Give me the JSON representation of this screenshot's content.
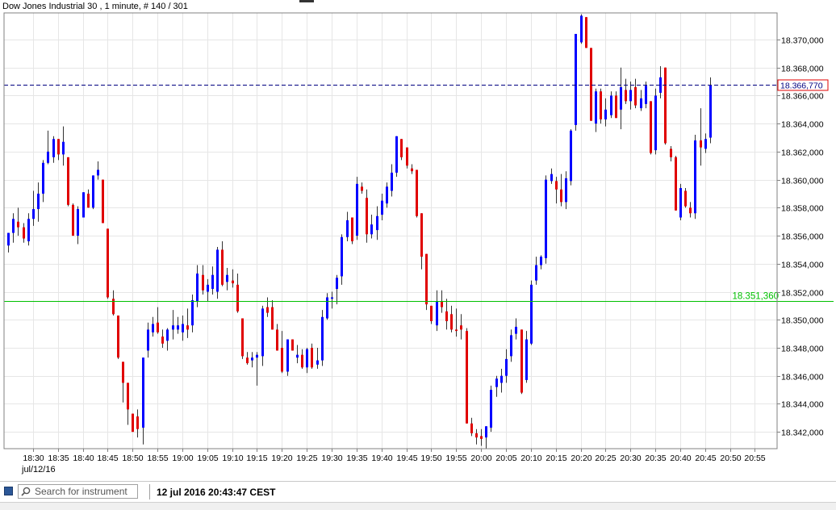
{
  "window": {
    "title": "Dow Jones Industrial 30 , 1 minute, # 140 / 301"
  },
  "chart_data": {
    "type": "candlestick",
    "title": "Dow Jones Industrial 30 , 1 minute, # 140 / 301",
    "date_label": "jul/12/16",
    "x_ticks": [
      "18:30",
      "18:35",
      "18:40",
      "18:45",
      "18:50",
      "18:55",
      "19:00",
      "19:05",
      "19:10",
      "19:15",
      "19:20",
      "19:25",
      "19:30",
      "19:35",
      "19:40",
      "19:45",
      "19:50",
      "19:55",
      "20:00",
      "20:05",
      "20:10",
      "20:15",
      "20:20",
      "20:25",
      "20:30",
      "20:35",
      "20:40",
      "20:45",
      "20:50",
      "20:55"
    ],
    "y_ticks": [
      "18.342,000",
      "18.344,000",
      "18.346,000",
      "18.348,000",
      "18.350,000",
      "18.352,000",
      "18.354,000",
      "18.356,000",
      "18.358,000",
      "18.360,000",
      "18.362,000",
      "18.364,000",
      "18.366,000",
      "18.368,000",
      "18.370,000"
    ],
    "y_tick_values": [
      18342,
      18344,
      18346,
      18348,
      18350,
      18352,
      18354,
      18356,
      18358,
      18360,
      18362,
      18364,
      18366,
      18368,
      18370
    ],
    "y_range": [
      18340.8,
      18371.9
    ],
    "x_range": [
      "18:25",
      "20:58"
    ],
    "grid": true,
    "colors": {
      "up": "#0000ff",
      "down": "#e00000",
      "current_line": "#000080",
      "level_line": "#00c000"
    },
    "current_price": {
      "value": 18366.77,
      "label": "18.366,770"
    },
    "level_line": {
      "value": 18351.36,
      "label": "18.351,360"
    },
    "candles": [
      {
        "t": "18:25",
        "o": 18355.3,
        "h": 18356.2,
        "l": 18354.8,
        "c": 18356.2
      },
      {
        "t": "18:26",
        "o": 18356.2,
        "h": 18357.6,
        "l": 18355.5,
        "c": 18357.2
      },
      {
        "t": "18:27",
        "o": 18357.0,
        "h": 18358.0,
        "l": 18356.0,
        "c": 18356.6
      },
      {
        "t": "18:28",
        "o": 18356.6,
        "h": 18356.9,
        "l": 18355.5,
        "c": 18355.8
      },
      {
        "t": "18:29",
        "o": 18355.6,
        "h": 18357.6,
        "l": 18355.3,
        "c": 18357.2
      },
      {
        "t": "18:30",
        "o": 18357.2,
        "h": 18359.2,
        "l": 18356.7,
        "c": 18357.9
      },
      {
        "t": "18:31",
        "o": 18357.9,
        "h": 18359.8,
        "l": 18357.0,
        "c": 18359.0
      },
      {
        "t": "18:32",
        "o": 18359.0,
        "h": 18361.4,
        "l": 18358.4,
        "c": 18361.2
      },
      {
        "t": "18:33",
        "o": 18361.2,
        "h": 18363.5,
        "l": 18361.1,
        "c": 18362.0
      },
      {
        "t": "18:34",
        "o": 18361.6,
        "h": 18363.1,
        "l": 18361.2,
        "c": 18362.9
      },
      {
        "t": "18:35",
        "o": 18362.9,
        "h": 18362.9,
        "l": 18361.4,
        "c": 18361.8
      },
      {
        "t": "18:36",
        "o": 18361.8,
        "h": 18363.8,
        "l": 18361.0,
        "c": 18362.7
      },
      {
        "t": "18:37",
        "o": 18361.6,
        "h": 18361.6,
        "l": 18358.1,
        "c": 18358.2
      },
      {
        "t": "18:38",
        "o": 18358.2,
        "h": 18358.3,
        "l": 18356.0,
        "c": 18356.0
      },
      {
        "t": "18:39",
        "o": 18356.0,
        "h": 18358.1,
        "l": 18355.4,
        "c": 18357.9
      },
      {
        "t": "18:40",
        "o": 18357.3,
        "h": 18359.1,
        "l": 18357.3,
        "c": 18359.1
      },
      {
        "t": "18:41",
        "o": 18359.0,
        "h": 18359.3,
        "l": 18358.0,
        "c": 18358.0
      },
      {
        "t": "18:42",
        "o": 18358.0,
        "h": 18360.3,
        "l": 18357.9,
        "c": 18360.3
      },
      {
        "t": "18:43",
        "o": 18360.3,
        "h": 18361.3,
        "l": 18360.0,
        "c": 18360.7
      },
      {
        "t": "18:44",
        "o": 18360.0,
        "h": 18360.0,
        "l": 18356.9,
        "c": 18356.9
      },
      {
        "t": "18:45",
        "o": 18356.5,
        "h": 18356.5,
        "l": 18351.5,
        "c": 18351.6
      },
      {
        "t": "18:46",
        "o": 18351.5,
        "h": 18352.1,
        "l": 18350.3,
        "c": 18350.4
      },
      {
        "t": "18:47",
        "o": 18350.3,
        "h": 18350.3,
        "l": 18347.2,
        "c": 18347.3
      },
      {
        "t": "18:48",
        "o": 18347.0,
        "h": 18347.0,
        "l": 18344.1,
        "c": 18345.5
      },
      {
        "t": "18:49",
        "o": 18345.5,
        "h": 18345.5,
        "l": 18342.5,
        "c": 18343.6
      },
      {
        "t": "18:50",
        "o": 18343.3,
        "h": 18343.3,
        "l": 18342.0,
        "c": 18342.0
      },
      {
        "t": "18:51",
        "o": 18343.1,
        "h": 18343.6,
        "l": 18341.6,
        "c": 18342.2
      },
      {
        "t": "18:52",
        "o": 18342.3,
        "h": 18347.3,
        "l": 18341.1,
        "c": 18347.3
      },
      {
        "t": "18:53",
        "o": 18347.8,
        "h": 18349.8,
        "l": 18347.3,
        "c": 18349.3
      },
      {
        "t": "18:54",
        "o": 18349.1,
        "h": 18350.2,
        "l": 18348.8,
        "c": 18349.7
      },
      {
        "t": "18:55",
        "o": 18349.8,
        "h": 18350.9,
        "l": 18349.0,
        "c": 18349.1
      },
      {
        "t": "18:56",
        "o": 18348.8,
        "h": 18349.3,
        "l": 18348.0,
        "c": 18348.3
      },
      {
        "t": "18:57",
        "o": 18348.5,
        "h": 18349.4,
        "l": 18347.8,
        "c": 18349.3
      },
      {
        "t": "18:58",
        "o": 18349.3,
        "h": 18350.7,
        "l": 18348.6,
        "c": 18349.6
      },
      {
        "t": "18:59",
        "o": 18349.3,
        "h": 18350.2,
        "l": 18349.0,
        "c": 18349.6
      },
      {
        "t": "19:00",
        "o": 18349.1,
        "h": 18350.3,
        "l": 18348.5,
        "c": 18349.7
      },
      {
        "t": "19:01",
        "o": 18349.6,
        "h": 18350.8,
        "l": 18348.7,
        "c": 18349.3
      },
      {
        "t": "19:02",
        "o": 18349.6,
        "h": 18351.8,
        "l": 18349.1,
        "c": 18351.4
      },
      {
        "t": "19:03",
        "o": 18351.3,
        "h": 18353.9,
        "l": 18350.9,
        "c": 18353.3
      },
      {
        "t": "19:04",
        "o": 18353.2,
        "h": 18353.9,
        "l": 18351.8,
        "c": 18352.1
      },
      {
        "t": "19:05",
        "o": 18352.0,
        "h": 18352.9,
        "l": 18351.3,
        "c": 18352.5
      },
      {
        "t": "19:06",
        "o": 18352.2,
        "h": 18353.8,
        "l": 18351.8,
        "c": 18353.2
      },
      {
        "t": "19:07",
        "o": 18352.0,
        "h": 18355.2,
        "l": 18351.5,
        "c": 18355.0
      },
      {
        "t": "19:08",
        "o": 18355.0,
        "h": 18355.6,
        "l": 18352.4,
        "c": 18352.5
      },
      {
        "t": "19:09",
        "o": 18352.7,
        "h": 18353.7,
        "l": 18352.1,
        "c": 18353.2
      },
      {
        "t": "19:10",
        "o": 18352.8,
        "h": 18353.6,
        "l": 18352.3,
        "c": 18352.6
      },
      {
        "t": "19:11",
        "o": 18352.5,
        "h": 18353.3,
        "l": 18350.5,
        "c": 18350.6
      },
      {
        "t": "19:12",
        "o": 18350.1,
        "h": 18350.1,
        "l": 18347.2,
        "c": 18347.4
      },
      {
        "t": "19:13",
        "o": 18347.3,
        "h": 18347.7,
        "l": 18346.8,
        "c": 18346.9
      },
      {
        "t": "19:14",
        "o": 18347.1,
        "h": 18347.7,
        "l": 18346.6,
        "c": 18347.3
      },
      {
        "t": "19:15",
        "o": 18347.3,
        "h": 18347.7,
        "l": 18345.3,
        "c": 18347.5
      },
      {
        "t": "19:16",
        "o": 18347.4,
        "h": 18351.0,
        "l": 18346.7,
        "c": 18350.8
      },
      {
        "t": "19:17",
        "o": 18350.9,
        "h": 18351.6,
        "l": 18350.2,
        "c": 18350.5
      },
      {
        "t": "19:18",
        "o": 18350.9,
        "h": 18351.4,
        "l": 18349.3,
        "c": 18349.3
      },
      {
        "t": "19:19",
        "o": 18349.3,
        "h": 18349.7,
        "l": 18347.8,
        "c": 18347.8
      },
      {
        "t": "19:20",
        "o": 18348.0,
        "h": 18349.2,
        "l": 18346.2,
        "c": 18346.3
      },
      {
        "t": "19:21",
        "o": 18346.3,
        "h": 18348.6,
        "l": 18346.0,
        "c": 18348.6
      },
      {
        "t": "19:22",
        "o": 18348.6,
        "h": 18348.6,
        "l": 18347.8,
        "c": 18347.8
      },
      {
        "t": "19:23",
        "o": 18347.3,
        "h": 18348.2,
        "l": 18346.9,
        "c": 18347.5
      },
      {
        "t": "19:24",
        "o": 18347.5,
        "h": 18347.9,
        "l": 18346.5,
        "c": 18346.6
      },
      {
        "t": "19:25",
        "o": 18346.6,
        "h": 18348.0,
        "l": 18346.2,
        "c": 18347.9
      },
      {
        "t": "19:26",
        "o": 18348.0,
        "h": 18348.3,
        "l": 18346.5,
        "c": 18346.6
      },
      {
        "t": "19:27",
        "o": 18346.8,
        "h": 18348.0,
        "l": 18346.5,
        "c": 18347.1
      },
      {
        "t": "19:28",
        "o": 18347.1,
        "h": 18350.7,
        "l": 18346.7,
        "c": 18350.2
      },
      {
        "t": "19:29",
        "o": 18350.1,
        "h": 18351.9,
        "l": 18350.0,
        "c": 18351.6
      },
      {
        "t": "19:30",
        "o": 18351.5,
        "h": 18352.0,
        "l": 18350.8,
        "c": 18351.6
      },
      {
        "t": "19:31",
        "o": 18352.2,
        "h": 18353.2,
        "l": 18351.1,
        "c": 18353.0
      },
      {
        "t": "19:32",
        "o": 18353.1,
        "h": 18356.1,
        "l": 18352.5,
        "c": 18355.9
      },
      {
        "t": "19:33",
        "o": 18355.9,
        "h": 18357.7,
        "l": 18355.6,
        "c": 18357.1
      },
      {
        "t": "19:34",
        "o": 18357.3,
        "h": 18357.3,
        "l": 18355.4,
        "c": 18355.6
      },
      {
        "t": "19:35",
        "o": 18356.0,
        "h": 18360.2,
        "l": 18355.7,
        "c": 18359.7
      },
      {
        "t": "19:36",
        "o": 18359.5,
        "h": 18359.8,
        "l": 18359.0,
        "c": 18359.2
      },
      {
        "t": "19:37",
        "o": 18358.7,
        "h": 18359.3,
        "l": 18355.5,
        "c": 18356.1
      },
      {
        "t": "19:38",
        "o": 18356.1,
        "h": 18357.5,
        "l": 18355.8,
        "c": 18356.8
      },
      {
        "t": "19:39",
        "o": 18356.4,
        "h": 18358.1,
        "l": 18355.7,
        "c": 18357.4
      },
      {
        "t": "19:40",
        "o": 18357.5,
        "h": 18359.0,
        "l": 18357.1,
        "c": 18358.5
      },
      {
        "t": "19:41",
        "o": 18358.3,
        "h": 18359.8,
        "l": 18358.0,
        "c": 18359.5
      },
      {
        "t": "19:42",
        "o": 18359.2,
        "h": 18361.1,
        "l": 18358.8,
        "c": 18360.5
      },
      {
        "t": "19:43",
        "o": 18360.5,
        "h": 18363.1,
        "l": 18360.2,
        "c": 18363.1
      },
      {
        "t": "19:44",
        "o": 18362.9,
        "h": 18362.9,
        "l": 18361.4,
        "c": 18361.6
      },
      {
        "t": "19:45",
        "o": 18362.3,
        "h": 18362.3,
        "l": 18360.8,
        "c": 18361.0
      },
      {
        "t": "19:46",
        "o": 18360.8,
        "h": 18361.1,
        "l": 18360.4,
        "c": 18360.6
      },
      {
        "t": "19:47",
        "o": 18360.7,
        "h": 18360.7,
        "l": 18357.3,
        "c": 18357.4
      },
      {
        "t": "19:48",
        "o": 18357.6,
        "h": 18357.6,
        "l": 18353.6,
        "c": 18354.5
      },
      {
        "t": "19:49",
        "o": 18354.7,
        "h": 18354.7,
        "l": 18350.7,
        "c": 18351.1
      },
      {
        "t": "19:50",
        "o": 18351.0,
        "h": 18351.0,
        "l": 18349.7,
        "c": 18349.9
      },
      {
        "t": "19:51",
        "o": 18349.6,
        "h": 18352.1,
        "l": 18349.2,
        "c": 18351.3
      },
      {
        "t": "19:52",
        "o": 18351.3,
        "h": 18352.1,
        "l": 18350.5,
        "c": 18350.9
      },
      {
        "t": "19:53",
        "o": 18350.6,
        "h": 18351.5,
        "l": 18349.3,
        "c": 18349.9
      },
      {
        "t": "19:54",
        "o": 18350.4,
        "h": 18351.0,
        "l": 18349.1,
        "c": 18349.3
      },
      {
        "t": "19:55",
        "o": 18349.3,
        "h": 18350.8,
        "l": 18348.8,
        "c": 18349.2
      },
      {
        "t": "19:56",
        "o": 18349.6,
        "h": 18350.4,
        "l": 18348.6,
        "c": 18349.3
      },
      {
        "t": "19:57",
        "o": 18349.2,
        "h": 18349.4,
        "l": 18342.6,
        "c": 18342.6
      },
      {
        "t": "19:58",
        "o": 18342.6,
        "h": 18343.0,
        "l": 18341.7,
        "c": 18341.9
      },
      {
        "t": "19:59",
        "o": 18341.9,
        "h": 18342.2,
        "l": 18341.1,
        "c": 18341.6
      },
      {
        "t": "20:00",
        "o": 18341.7,
        "h": 18342.2,
        "l": 18341.0,
        "c": 18341.5
      },
      {
        "t": "20:01",
        "o": 18341.6,
        "h": 18342.4,
        "l": 18340.8,
        "c": 18342.4
      },
      {
        "t": "20:02",
        "o": 18342.3,
        "h": 18345.3,
        "l": 18342.0,
        "c": 18345.0
      },
      {
        "t": "20:03",
        "o": 18345.2,
        "h": 18346.0,
        "l": 18344.5,
        "c": 18345.8
      },
      {
        "t": "20:04",
        "o": 18345.5,
        "h": 18346.5,
        "l": 18344.8,
        "c": 18346.0
      },
      {
        "t": "20:05",
        "o": 18346.0,
        "h": 18347.9,
        "l": 18345.5,
        "c": 18347.2
      },
      {
        "t": "20:06",
        "o": 18347.4,
        "h": 18349.3,
        "l": 18347.0,
        "c": 18348.9
      },
      {
        "t": "20:07",
        "o": 18349.0,
        "h": 18350.1,
        "l": 18348.6,
        "c": 18349.5
      },
      {
        "t": "20:08",
        "o": 18349.3,
        "h": 18349.3,
        "l": 18344.7,
        "c": 18344.8
      },
      {
        "t": "20:09",
        "o": 18345.7,
        "h": 18349.2,
        "l": 18345.5,
        "c": 18348.6
      },
      {
        "t": "20:10",
        "o": 18348.3,
        "h": 18352.8,
        "l": 18348.2,
        "c": 18352.5
      },
      {
        "t": "20:11",
        "o": 18352.8,
        "h": 18354.5,
        "l": 18352.5,
        "c": 18353.9
      },
      {
        "t": "20:12",
        "o": 18353.9,
        "h": 18354.6,
        "l": 18353.6,
        "c": 18354.5
      },
      {
        "t": "20:13",
        "o": 18354.4,
        "h": 18360.3,
        "l": 18354.0,
        "c": 18360.0
      },
      {
        "t": "20:14",
        "o": 18359.9,
        "h": 18360.8,
        "l": 18359.7,
        "c": 18360.4
      },
      {
        "t": "20:15",
        "o": 18359.9,
        "h": 18360.2,
        "l": 18358.3,
        "c": 18359.3
      },
      {
        "t": "20:16",
        "o": 18359.3,
        "h": 18360.4,
        "l": 18358.1,
        "c": 18358.4
      },
      {
        "t": "20:17",
        "o": 18358.4,
        "h": 18360.6,
        "l": 18357.9,
        "c": 18360.1
      },
      {
        "t": "20:18",
        "o": 18359.9,
        "h": 18363.6,
        "l": 18359.6,
        "c": 18363.5
      },
      {
        "t": "20:19",
        "o": 18363.9,
        "h": 18370.4,
        "l": 18363.5,
        "c": 18370.4
      },
      {
        "t": "20:20",
        "o": 18369.8,
        "h": 18371.8,
        "l": 18369.7,
        "c": 18371.7
      },
      {
        "t": "20:21",
        "o": 18371.6,
        "h": 18371.6,
        "l": 18369.4,
        "c": 18369.4
      },
      {
        "t": "20:22",
        "o": 18369.4,
        "h": 18369.4,
        "l": 18364.2,
        "c": 18364.2
      },
      {
        "t": "20:23",
        "o": 18364.0,
        "h": 18366.5,
        "l": 18363.4,
        "c": 18366.3
      },
      {
        "t": "20:24",
        "o": 18366.3,
        "h": 18366.5,
        "l": 18364.0,
        "c": 18364.3
      },
      {
        "t": "20:25",
        "o": 18364.3,
        "h": 18365.8,
        "l": 18363.8,
        "c": 18365.0
      },
      {
        "t": "20:26",
        "o": 18364.6,
        "h": 18366.3,
        "l": 18364.4,
        "c": 18366.0
      },
      {
        "t": "20:27",
        "o": 18366.0,
        "h": 18366.3,
        "l": 18364.4,
        "c": 18364.4
      },
      {
        "t": "20:28",
        "o": 18365.0,
        "h": 18368.0,
        "l": 18363.6,
        "c": 18366.6
      },
      {
        "t": "20:29",
        "o": 18366.4,
        "h": 18367.2,
        "l": 18365.4,
        "c": 18365.6
      },
      {
        "t": "20:30",
        "o": 18365.6,
        "h": 18367.0,
        "l": 18365.0,
        "c": 18366.4
      },
      {
        "t": "20:31",
        "o": 18366.6,
        "h": 18367.2,
        "l": 18365.1,
        "c": 18365.3
      },
      {
        "t": "20:32",
        "o": 18365.1,
        "h": 18366.4,
        "l": 18364.9,
        "c": 18365.8
      },
      {
        "t": "20:33",
        "o": 18365.4,
        "h": 18367.0,
        "l": 18365.1,
        "c": 18366.7
      },
      {
        "t": "20:34",
        "o": 18365.6,
        "h": 18365.6,
        "l": 18361.8,
        "c": 18361.9
      },
      {
        "t": "20:35",
        "o": 18362.1,
        "h": 18366.5,
        "l": 18361.8,
        "c": 18366.0
      },
      {
        "t": "20:36",
        "o": 18366.2,
        "h": 18368.1,
        "l": 18365.8,
        "c": 18367.3
      },
      {
        "t": "20:37",
        "o": 18368.0,
        "h": 18368.0,
        "l": 18362.5,
        "c": 18362.6
      },
      {
        "t": "20:38",
        "o": 18362.2,
        "h": 18362.4,
        "l": 18361.3,
        "c": 18361.6
      },
      {
        "t": "20:39",
        "o": 18361.6,
        "h": 18361.7,
        "l": 18357.8,
        "c": 18357.8
      },
      {
        "t": "20:40",
        "o": 18357.3,
        "h": 18359.7,
        "l": 18357.1,
        "c": 18359.4
      },
      {
        "t": "20:41",
        "o": 18359.2,
        "h": 18359.4,
        "l": 18358.0,
        "c": 18358.1
      },
      {
        "t": "20:42",
        "o": 18358.0,
        "h": 18358.4,
        "l": 18357.3,
        "c": 18357.6
      },
      {
        "t": "20:43",
        "o": 18357.6,
        "h": 18363.2,
        "l": 18357.2,
        "c": 18362.8
      },
      {
        "t": "20:44",
        "o": 18362.8,
        "h": 18365.1,
        "l": 18361.0,
        "c": 18362.3
      },
      {
        "t": "20:45",
        "o": 18362.2,
        "h": 18363.3,
        "l": 18361.9,
        "c": 18362.9
      },
      {
        "t": "20:46",
        "o": 18363.0,
        "h": 18367.3,
        "l": 18362.6,
        "c": 18366.77
      }
    ]
  },
  "status_bar": {
    "search_placeholder": "Search for instrument",
    "datetime": "12 jul 2016 20:43:47 CEST",
    "search_icon": "magnifier-icon",
    "status_icon": "square-icon"
  }
}
